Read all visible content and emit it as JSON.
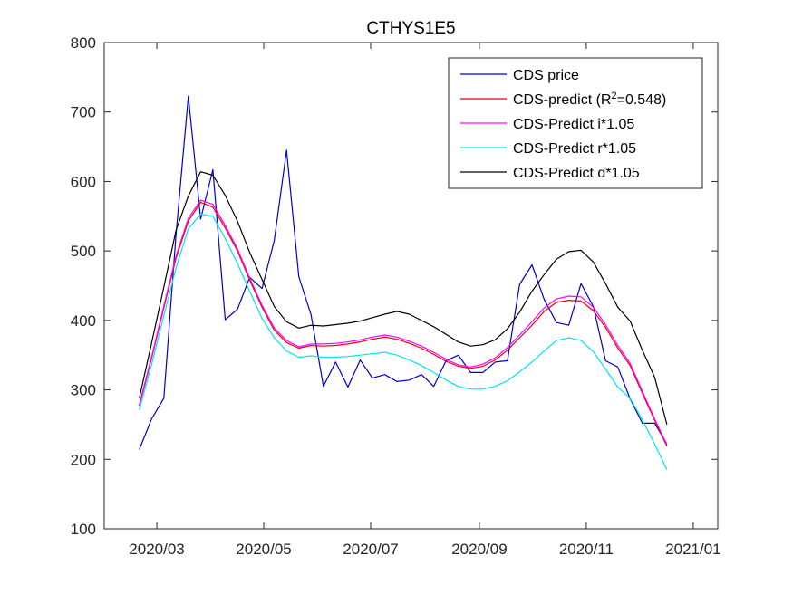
{
  "chart_data": {
    "type": "line",
    "title": "CTHYS1E5",
    "xlabel": "",
    "ylabel": "",
    "ylim": [
      100,
      800
    ],
    "yticks": [
      100,
      200,
      300,
      400,
      500,
      600,
      700,
      800
    ],
    "xlim": [
      "2020-01-31",
      "2021-01-15"
    ],
    "xticks": [
      {
        "date": "2020-03-01",
        "label": "2020/03"
      },
      {
        "date": "2020-05-01",
        "label": "2020/05"
      },
      {
        "date": "2020-07-01",
        "label": "2020/07"
      },
      {
        "date": "2020-09-01",
        "label": "2020/09"
      },
      {
        "date": "2020-11-01",
        "label": "2020/11"
      },
      {
        "date": "2021-01-01",
        "label": "2021/01"
      }
    ],
    "grid": false,
    "legend_position": "top-right",
    "series": [
      {
        "name": "CDS price",
        "color": "#0000cd",
        "x": [
          "2020-02-20",
          "2020-02-27",
          "2020-03-05",
          "2020-03-12",
          "2020-03-19",
          "2020-03-26",
          "2020-04-02",
          "2020-04-09",
          "2020-04-16",
          "2020-04-23",
          "2020-04-30",
          "2020-05-07",
          "2020-05-14",
          "2020-05-21",
          "2020-05-28",
          "2020-06-04",
          "2020-06-11",
          "2020-06-18",
          "2020-06-25",
          "2020-07-02",
          "2020-07-09",
          "2020-07-16",
          "2020-07-23",
          "2020-07-30",
          "2020-08-06",
          "2020-08-13",
          "2020-08-20",
          "2020-08-27",
          "2020-09-03",
          "2020-09-10",
          "2020-09-17",
          "2020-09-24",
          "2020-10-01",
          "2020-10-08",
          "2020-10-15",
          "2020-10-22",
          "2020-10-29",
          "2020-11-05",
          "2020-11-12",
          "2020-11-19",
          "2020-11-26",
          "2020-12-03",
          "2020-12-10",
          "2020-12-17"
        ],
        "values": [
          214,
          258,
          288,
          525,
          723,
          546,
          617,
          401,
          416,
          462,
          446,
          515,
          645,
          463,
          408,
          305,
          340,
          304,
          343,
          317,
          322,
          312,
          314,
          322,
          305,
          342,
          350,
          325,
          325,
          340,
          342,
          452,
          480,
          430,
          397,
          393,
          453,
          420,
          342,
          333,
          287,
          252,
          252,
          222
        ]
      },
      {
        "name": "CDS-predict (R²=0.548)",
        "legend_parts": [
          "CDS-predict (R",
          "2",
          "=0.548)"
        ],
        "color": "#e8000b",
        "x": [
          "2020-02-20",
          "2020-02-27",
          "2020-03-05",
          "2020-03-12",
          "2020-03-19",
          "2020-03-26",
          "2020-04-02",
          "2020-04-09",
          "2020-04-16",
          "2020-04-23",
          "2020-04-30",
          "2020-05-07",
          "2020-05-14",
          "2020-05-21",
          "2020-05-28",
          "2020-06-04",
          "2020-06-11",
          "2020-06-18",
          "2020-06-25",
          "2020-07-02",
          "2020-07-09",
          "2020-07-16",
          "2020-07-23",
          "2020-07-30",
          "2020-08-06",
          "2020-08-13",
          "2020-08-20",
          "2020-08-27",
          "2020-09-03",
          "2020-09-10",
          "2020-09-17",
          "2020-09-24",
          "2020-10-01",
          "2020-10-08",
          "2020-10-15",
          "2020-10-22",
          "2020-10-29",
          "2020-11-05",
          "2020-11-12",
          "2020-11-19",
          "2020-11-26",
          "2020-12-03",
          "2020-12-10",
          "2020-12-17"
        ],
        "values": [
          277,
          345,
          418,
          490,
          543,
          570,
          563,
          533,
          500,
          458,
          419,
          386,
          368,
          360,
          364,
          363,
          364,
          366,
          369,
          373,
          376,
          373,
          367,
          360,
          351,
          341,
          334,
          331,
          334,
          343,
          357,
          375,
          393,
          413,
          426,
          429,
          428,
          414,
          390,
          360,
          335,
          295,
          256,
          219
        ]
      },
      {
        "name": "CDS-Predict i*1.05",
        "color": "#ff00ff",
        "x": [
          "2020-02-20",
          "2020-02-27",
          "2020-03-05",
          "2020-03-12",
          "2020-03-19",
          "2020-03-26",
          "2020-04-02",
          "2020-04-09",
          "2020-04-16",
          "2020-04-23",
          "2020-04-30",
          "2020-05-07",
          "2020-05-14",
          "2020-05-21",
          "2020-05-28",
          "2020-06-04",
          "2020-06-11",
          "2020-06-18",
          "2020-06-25",
          "2020-07-02",
          "2020-07-09",
          "2020-07-16",
          "2020-07-23",
          "2020-07-30",
          "2020-08-06",
          "2020-08-13",
          "2020-08-20",
          "2020-08-27",
          "2020-09-03",
          "2020-09-10",
          "2020-09-17",
          "2020-09-24",
          "2020-10-01",
          "2020-10-08",
          "2020-10-15",
          "2020-10-22",
          "2020-10-29",
          "2020-11-05",
          "2020-11-12",
          "2020-11-19",
          "2020-11-26",
          "2020-12-03",
          "2020-12-10",
          "2020-12-17"
        ],
        "values": [
          279,
          347,
          421,
          493,
          547,
          573,
          567,
          537,
          503,
          461,
          422,
          389,
          371,
          362,
          366,
          366,
          367,
          369,
          372,
          376,
          379,
          376,
          370,
          363,
          354,
          344,
          336,
          333,
          337,
          346,
          361,
          379,
          398,
          418,
          431,
          435,
          434,
          419,
          394,
          364,
          338,
          298,
          258,
          221
        ]
      },
      {
        "name": "CDS-Predict r*1.05",
        "color": "#00e5ee",
        "x": [
          "2020-02-20",
          "2020-02-27",
          "2020-03-05",
          "2020-03-12",
          "2020-03-19",
          "2020-03-26",
          "2020-04-02",
          "2020-04-09",
          "2020-04-16",
          "2020-04-23",
          "2020-04-30",
          "2020-05-07",
          "2020-05-14",
          "2020-05-21",
          "2020-05-28",
          "2020-06-04",
          "2020-06-11",
          "2020-06-18",
          "2020-06-25",
          "2020-07-02",
          "2020-07-09",
          "2020-07-16",
          "2020-07-23",
          "2020-07-30",
          "2020-08-06",
          "2020-08-13",
          "2020-08-20",
          "2020-08-27",
          "2020-09-03",
          "2020-09-10",
          "2020-09-17",
          "2020-09-24",
          "2020-10-01",
          "2020-10-08",
          "2020-10-15",
          "2020-10-22",
          "2020-10-29",
          "2020-11-05",
          "2020-11-12",
          "2020-11-19",
          "2020-11-26",
          "2020-12-03",
          "2020-12-10",
          "2020-12-17"
        ],
        "values": [
          271,
          336,
          407,
          476,
          532,
          553,
          550,
          518,
          482,
          442,
          403,
          375,
          356,
          347,
          349,
          347,
          347,
          348,
          350,
          352,
          354,
          350,
          343,
          335,
          325,
          314,
          305,
          301,
          301,
          305,
          313,
          326,
          340,
          356,
          371,
          375,
          371,
          355,
          330,
          304,
          288,
          257,
          222,
          185
        ]
      },
      {
        "name": "CDS-Predict d*1.05",
        "color": "#000000",
        "x": [
          "2020-02-20",
          "2020-02-27",
          "2020-03-05",
          "2020-03-12",
          "2020-03-19",
          "2020-03-26",
          "2020-04-02",
          "2020-04-09",
          "2020-04-16",
          "2020-04-23",
          "2020-04-30",
          "2020-05-07",
          "2020-05-14",
          "2020-05-21",
          "2020-05-28",
          "2020-06-04",
          "2020-06-11",
          "2020-06-18",
          "2020-06-25",
          "2020-07-02",
          "2020-07-09",
          "2020-07-16",
          "2020-07-23",
          "2020-07-30",
          "2020-08-06",
          "2020-08-13",
          "2020-08-20",
          "2020-08-27",
          "2020-09-03",
          "2020-09-10",
          "2020-09-17",
          "2020-09-24",
          "2020-10-01",
          "2020-10-08",
          "2020-10-15",
          "2020-10-22",
          "2020-10-29",
          "2020-11-05",
          "2020-11-12",
          "2020-11-19",
          "2020-11-26",
          "2020-12-03",
          "2020-12-10",
          "2020-12-17"
        ],
        "values": [
          288,
          367,
          448,
          530,
          579,
          614,
          609,
          580,
          543,
          498,
          459,
          420,
          398,
          389,
          393,
          392,
          394,
          396,
          399,
          404,
          409,
          413,
          409,
          400,
          391,
          380,
          369,
          363,
          365,
          372,
          388,
          412,
          442,
          466,
          488,
          499,
          501,
          484,
          453,
          419,
          399,
          357,
          318,
          250
        ]
      }
    ]
  }
}
